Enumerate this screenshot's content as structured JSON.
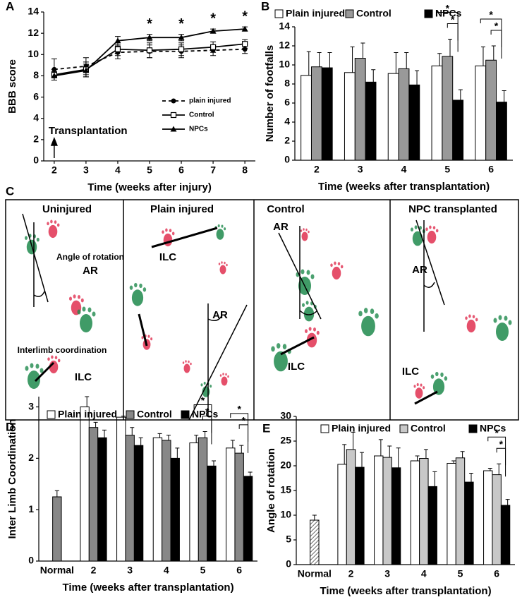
{
  "chart_data": [
    {
      "type": "line",
      "panel_label": "A",
      "ylabel": "BBB score",
      "xlabel": "Time (weeks after injury)",
      "x": [
        2,
        3,
        4,
        5,
        6,
        7,
        8
      ],
      "xlim": [
        1.67,
        8.33
      ],
      "xticks": [
        2,
        3,
        4,
        5,
        6,
        7,
        8
      ],
      "ylim": [
        0,
        14
      ],
      "yticks": [
        0,
        2,
        4,
        6,
        8,
        10,
        12,
        14
      ],
      "series": [
        {
          "name": "plain injured",
          "color": "#000000",
          "dash": true,
          "marker": "circle",
          "values": [
            8.6,
            8.9,
            10.2,
            10.3,
            10.3,
            10.4,
            10.5
          ],
          "errors": [
            1.0,
            0.8,
            0.6,
            0.6,
            0.6,
            0.5,
            0.4
          ]
        },
        {
          "name": "Control",
          "color": "#000000",
          "dash": false,
          "marker": "square",
          "values": [
            8.1,
            8.6,
            10.5,
            10.4,
            10.5,
            10.7,
            11.0
          ],
          "errors": [
            0.5,
            0.7,
            0.6,
            0.7,
            0.6,
            0.5,
            0.4
          ]
        },
        {
          "name": "NPCs",
          "color": "#000000",
          "dash": false,
          "marker": "triangle",
          "values": [
            8.0,
            8.5,
            11.3,
            11.6,
            11.6,
            12.2,
            12.4
          ],
          "errors": [
            0.4,
            0.6,
            0.4,
            0.3,
            0.3,
            0.2,
            0.2
          ]
        }
      ],
      "annotations": [
        {
          "text": "*",
          "x": 5
        },
        {
          "text": "*",
          "x": 6
        },
        {
          "text": "*",
          "x": 7
        },
        {
          "text": "*",
          "x": 8
        }
      ],
      "arrow_annotation": {
        "text": "Transplantation",
        "x": 2
      }
    },
    {
      "type": "bar",
      "panel_label": "B",
      "ylabel": "Number of footfalls",
      "xlabel": "Time (weeks after transplantation)",
      "categories": [
        "2",
        "3",
        "4",
        "5",
        "6"
      ],
      "ylim": [
        0,
        14
      ],
      "yticks": [
        0,
        2,
        4,
        6,
        8,
        10,
        12,
        14
      ],
      "series": [
        {
          "name": "Plain injured",
          "color": "#ffffff",
          "values": [
            8.9,
            9.2,
            9.1,
            9.9,
            9.9
          ],
          "errors": [
            2.5,
            2.7,
            2.2,
            1.3,
            2.0
          ]
        },
        {
          "name": "Control",
          "color": "#999999",
          "values": [
            9.8,
            10.7,
            9.6,
            10.9,
            10.5
          ],
          "errors": [
            1.5,
            1.6,
            1.7,
            1.8,
            1.5
          ]
        },
        {
          "name": "NPCs",
          "color": "#000000",
          "values": [
            9.7,
            8.2,
            7.9,
            6.3,
            6.1
          ],
          "errors": [
            1.6,
            1.3,
            1.5,
            1.1,
            1.2
          ]
        }
      ],
      "significance": [
        {
          "label": "*",
          "category": 3,
          "series": [
            0,
            2
          ]
        },
        {
          "label": "*",
          "category": 3,
          "series": [
            1,
            2
          ]
        },
        {
          "label": "*",
          "category": 4,
          "series": [
            0,
            2
          ]
        },
        {
          "label": "*",
          "category": 4,
          "series": [
            1,
            2
          ]
        }
      ]
    },
    {
      "type": "bar",
      "panel_label": "D",
      "ylabel": "Inter Limb Coordination",
      "xlabel": "Time (weeks after transplantation)",
      "categories": [
        "Normal",
        "2",
        "3",
        "4",
        "5",
        "6"
      ],
      "ylim": [
        0,
        3.2
      ],
      "yticks": [
        0,
        1,
        2,
        3
      ],
      "normal": {
        "value": 1.25,
        "error": 0.12,
        "color": "#888888"
      },
      "series": [
        {
          "name": "Plain injured",
          "color": "#ffffff",
          "values": [
            null,
            3.0,
            2.8,
            2.4,
            2.3,
            2.2
          ],
          "errors": [
            null,
            0.2,
            0.02,
            0.08,
            0.15,
            0.15
          ]
        },
        {
          "name": "Control",
          "color": "#888888",
          "values": [
            null,
            2.6,
            2.45,
            2.35,
            2.4,
            2.1
          ],
          "errors": [
            null,
            0.1,
            0.15,
            0.1,
            0.12,
            0.15
          ]
        },
        {
          "name": "NPCs",
          "color": "#000000",
          "values": [
            null,
            2.4,
            2.25,
            2.0,
            1.85,
            1.65
          ],
          "errors": [
            null,
            0.15,
            0.15,
            0.2,
            0.1,
            0.08
          ]
        }
      ],
      "significance": [
        {
          "label": "*",
          "category": 4,
          "series": [
            0,
            2
          ]
        },
        {
          "label": "*",
          "category": 4,
          "series": [
            1,
            2
          ]
        },
        {
          "label": "*",
          "category": 5,
          "series": [
            0,
            2
          ]
        },
        {
          "label": "*",
          "category": 5,
          "series": [
            1,
            2
          ]
        }
      ]
    },
    {
      "type": "bar",
      "panel_label": "E",
      "ylabel": "Angle of rotation",
      "xlabel": "Time (weeks after transplantation)",
      "categories": [
        "Normal",
        "2",
        "3",
        "4",
        "5",
        "6"
      ],
      "ylim": [
        0,
        30
      ],
      "yticks": [
        0,
        5,
        10,
        15,
        20,
        25,
        30
      ],
      "normal": {
        "value": 9,
        "error": 1,
        "color": "#888888",
        "pattern": "hatch"
      },
      "series": [
        {
          "name": "Plain injured",
          "color": "#ffffff",
          "values": [
            null,
            20.3,
            22,
            21,
            20.5,
            19
          ],
          "errors": [
            null,
            4,
            3.3,
            1,
            0.5,
            0.5
          ]
        },
        {
          "name": "Control",
          "color": "#c8c8c8",
          "values": [
            null,
            23.3,
            21.7,
            21.5,
            21.6,
            18.2
          ],
          "errors": [
            null,
            3.5,
            2.3,
            1.8,
            1.3,
            2.2
          ]
        },
        {
          "name": "NPCs",
          "color": "#000000",
          "values": [
            null,
            19.7,
            19.6,
            15.8,
            16.7,
            12
          ],
          "errors": [
            null,
            3,
            4,
            3,
            1.8,
            1.2
          ]
        }
      ],
      "significance": [
        {
          "label": "*",
          "category": 5,
          "series": [
            0,
            2
          ]
        },
        {
          "label": "*",
          "category": 5,
          "series": [
            1,
            2
          ]
        }
      ]
    }
  ],
  "panel_c": {
    "panel_label": "C",
    "panels": [
      {
        "title": "Uninjured",
        "labels": [
          "Angle of rotation",
          "AR",
          "Interlimb coordination",
          "ILC"
        ]
      },
      {
        "title": "Plain injured",
        "labels": [
          "ILC",
          "AR"
        ]
      },
      {
        "title": "Control",
        "labels": [
          "AR",
          "ILC"
        ]
      },
      {
        "title": "NPC transplanted",
        "labels": [
          "AR",
          "ILC"
        ]
      }
    ]
  }
}
